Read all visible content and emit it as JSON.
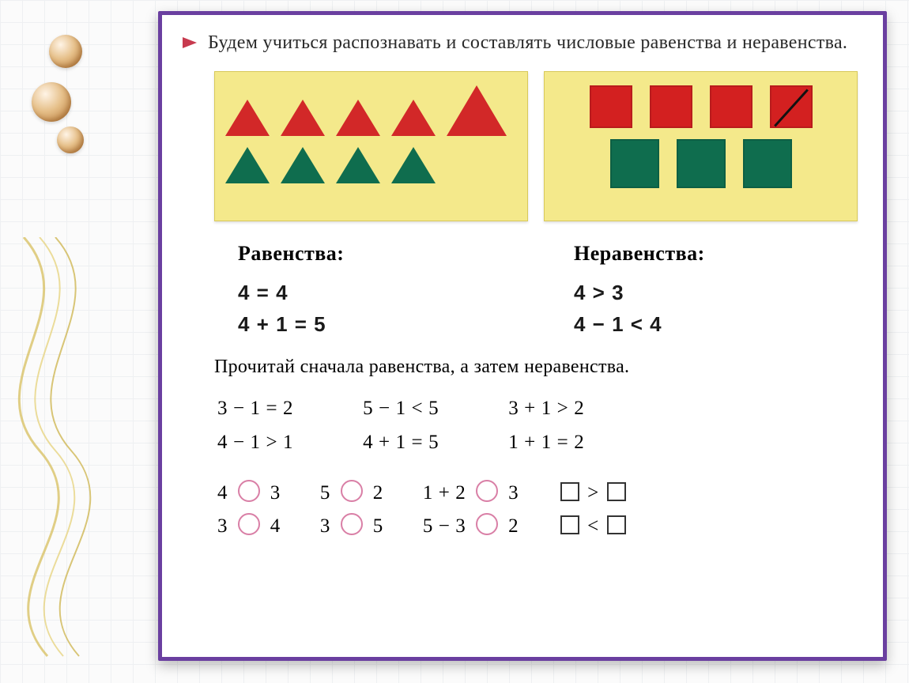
{
  "intro": "Будем учиться распознавать и составлять числовые равенства и неравенства.",
  "panels": {
    "left": {
      "row1": [
        {
          "shape": "triangle",
          "color": "#d22828",
          "size": "s"
        },
        {
          "shape": "triangle",
          "color": "#d22828",
          "size": "s"
        },
        {
          "shape": "triangle",
          "color": "#d22828",
          "size": "s"
        },
        {
          "shape": "triangle",
          "color": "#d22828",
          "size": "s"
        },
        {
          "shape": "triangle",
          "color": "#d22828",
          "size": "l"
        }
      ],
      "row2": [
        {
          "shape": "triangle",
          "color": "#0f6d4e",
          "size": "s"
        },
        {
          "shape": "triangle",
          "color": "#0f6d4e",
          "size": "s"
        },
        {
          "shape": "triangle",
          "color": "#0f6d4e",
          "size": "s"
        },
        {
          "shape": "triangle",
          "color": "#0f6d4e",
          "size": "s"
        }
      ]
    },
    "right": {
      "row1": [
        {
          "shape": "square",
          "color": "#d32020"
        },
        {
          "shape": "square",
          "color": "#d32020"
        },
        {
          "shape": "square",
          "color": "#d32020"
        },
        {
          "shape": "square",
          "color": "#d32020",
          "strike": true
        }
      ],
      "row2": [
        {
          "shape": "square",
          "color": "#0f6d4e"
        },
        {
          "shape": "square",
          "color": "#0f6d4e"
        },
        {
          "shape": "square",
          "color": "#0f6d4e"
        }
      ]
    },
    "bg": "#f4e98b"
  },
  "equalities": {
    "title": "Равенства:",
    "lines": [
      "4 = 4",
      "4 + 1 = 5"
    ]
  },
  "inequalities": {
    "title": "Неравенства:",
    "lines": [
      "4 > 3",
      "4 − 1 < 4"
    ]
  },
  "task": "Прочитай сначала равенства, а затем неравенства.",
  "examples": {
    "col1": [
      "3 − 1 = 2",
      "4 − 1 > 1"
    ],
    "col2": [
      "5 − 1 < 5",
      "4 + 1 = 5"
    ],
    "col3": [
      "3 + 1 > 2",
      "1 + 1 = 2"
    ]
  },
  "fillins": {
    "c1": [
      "4 ○ 3",
      "3 ○ 4"
    ],
    "c2": [
      "5 ○ 2",
      "3 ○ 5"
    ],
    "c3": [
      "1 + 2 ○ 3",
      "5 − 3 ○ 2"
    ],
    "c4": [
      "□ > □",
      "□ < □"
    ]
  },
  "colors": {
    "frame": "#6a3fa0",
    "marker": "#c73a4e",
    "circle": "#d97fa6",
    "red": "#d22828",
    "green": "#0f6d4e"
  }
}
